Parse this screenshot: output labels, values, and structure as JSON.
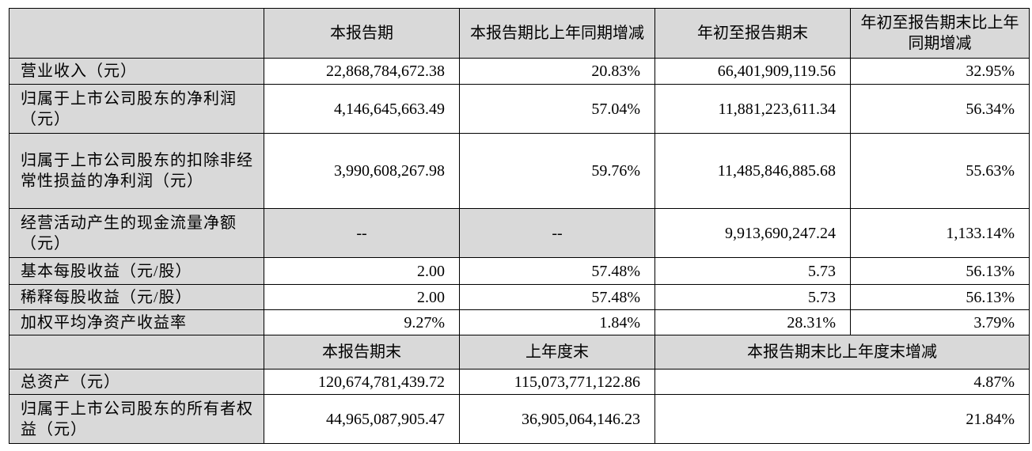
{
  "header": {
    "col1": "本报告期",
    "col2": "本报告期比上年同期增减",
    "col3": "年初至报告期末",
    "col4": "年初至报告期末比上年同期增减"
  },
  "rows": [
    {
      "label": "营业收入（元）",
      "v1": "22,868,784,672.38",
      "v2": "20.83%",
      "v3": "66,401,909,119.56",
      "v4": "32.95%"
    },
    {
      "label": "归属于上市公司股东的净利润（元）",
      "v1": "4,146,645,663.49",
      "v2": "57.04%",
      "v3": "11,881,223,611.34",
      "v4": "56.34%"
    },
    {
      "label": "归属于上市公司股东的扣除非经常性损益的净利润（元）",
      "v1": "3,990,608,267.98",
      "v2": "59.76%",
      "v3": "11,485,846,885.68",
      "v4": "55.63%"
    },
    {
      "label": "经营活动产生的现金流量净额（元）",
      "v1": "--",
      "v2": "--",
      "v3": "9,913,690,247.24",
      "v4": "1,133.14%"
    },
    {
      "label": "基本每股收益（元/股）",
      "v1": "2.00",
      "v2": "57.48%",
      "v3": "5.73",
      "v4": "56.13%"
    },
    {
      "label": "稀释每股收益（元/股）",
      "v1": "2.00",
      "v2": "57.48%",
      "v3": "5.73",
      "v4": "56.13%"
    },
    {
      "label": "加权平均净资产收益率",
      "v1": "9.27%",
      "v2": "1.84%",
      "v3": "28.31%",
      "v4": "3.79%"
    }
  ],
  "header2": {
    "col1": "本报告期末",
    "col2": "上年度末",
    "col3": "本报告期末比上年度末增减"
  },
  "rows2": [
    {
      "label": "总资产（元）",
      "v1": "120,674,781,439.72",
      "v2": "115,073,771,122.86",
      "v3": "4.87%"
    },
    {
      "label": "归属于上市公司股东的所有者权益（元）",
      "v1": "44,965,087,905.47",
      "v2": "36,905,064,146.23",
      "v3": "21.84%"
    }
  ],
  "colors": {
    "header_fill": "#d9d9d9",
    "border": "#000000"
  }
}
